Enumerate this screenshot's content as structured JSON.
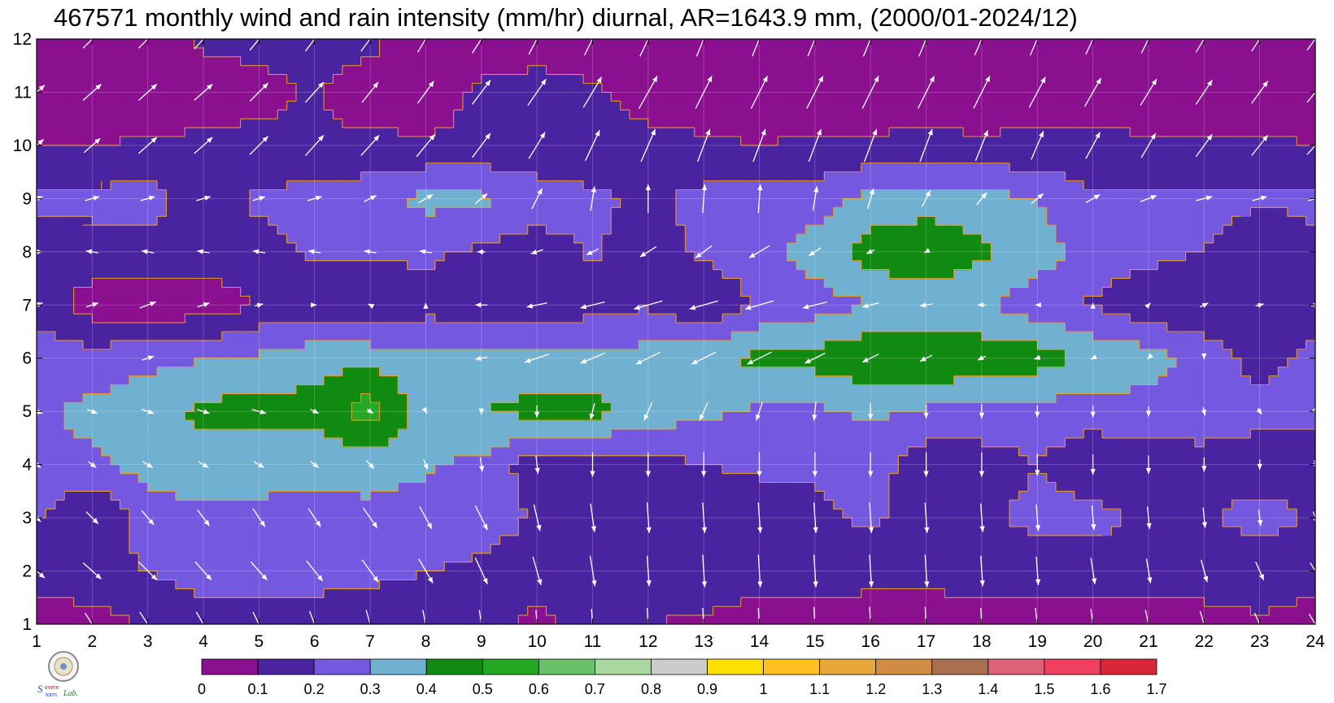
{
  "title": "467571 monthly wind and rain intensity (mm/hr) diurnal, AR=1643.9 mm, (2000/01-2024/12)",
  "chart_data": {
    "type": "heatmap",
    "title": "467571 monthly wind and rain intensity (mm/hr) diurnal, AR=1643.9 mm, (2000/01-2024/12)",
    "xlabel": "",
    "ylabel": "",
    "x": [
      1,
      2,
      3,
      4,
      5,
      6,
      7,
      8,
      9,
      10,
      11,
      12,
      13,
      14,
      15,
      16,
      17,
      18,
      19,
      20,
      21,
      22,
      23,
      24
    ],
    "y": [
      1,
      2,
      3,
      4,
      5,
      6,
      7,
      8,
      9,
      10,
      11,
      12
    ],
    "xlim": [
      1,
      24
    ],
    "ylim": [
      1,
      12
    ],
    "x_ticks": [
      "1",
      "2",
      "3",
      "4",
      "5",
      "6",
      "7",
      "8",
      "9",
      "10",
      "11",
      "12",
      "13",
      "14",
      "15",
      "16",
      "17",
      "18",
      "19",
      "20",
      "21",
      "22",
      "23",
      "24"
    ],
    "y_ticks": [
      "1",
      "2",
      "3",
      "4",
      "5",
      "6",
      "7",
      "8",
      "9",
      "10",
      "11",
      "12"
    ],
    "grid": true,
    "levels": [
      "0",
      "0.1",
      "0.2",
      "0.3",
      "0.4",
      "0.5",
      "0.6",
      "0.7",
      "0.8",
      "0.9",
      "1",
      "1.1",
      "1.2",
      "1.3",
      "1.4",
      "1.5",
      "1.6",
      "1.7"
    ],
    "level_values": [
      0,
      0.1,
      0.2,
      0.3,
      0.4,
      0.5,
      0.6,
      0.7,
      0.8,
      0.9,
      1,
      1.1,
      1.2,
      1.3,
      1.4,
      1.5,
      1.6,
      1.7
    ],
    "colors": [
      "#8a1090",
      "#4a24a0",
      "#7558e0",
      "#70b0d0",
      "#108a10",
      "#22a822",
      "#68c068",
      "#a8d8a0",
      "#cccccc",
      "#ffe000",
      "#ffc020",
      "#e8a838",
      "#d08c40",
      "#a87050",
      "#e06078",
      "#f04060",
      "#d82838"
    ],
    "z": [
      [
        0.05,
        0.05,
        0.12,
        0.15,
        0.15,
        0.15,
        0.15,
        0.15,
        0.15,
        0.07,
        0.15,
        0.1,
        0.09,
        0.06,
        0.06,
        0.04,
        0.04,
        0.05,
        0.06,
        0.06,
        0.06,
        0.07,
        0.09,
        0.06
      ],
      [
        0.14,
        0.18,
        0.2,
        0.25,
        0.25,
        0.24,
        0.22,
        0.2,
        0.18,
        0.16,
        0.15,
        0.14,
        0.14,
        0.14,
        0.14,
        0.14,
        0.14,
        0.14,
        0.14,
        0.14,
        0.14,
        0.14,
        0.14,
        0.14
      ],
      [
        0.21,
        0.09,
        0.25,
        0.28,
        0.28,
        0.28,
        0.28,
        0.27,
        0.24,
        0.19,
        0.16,
        0.15,
        0.14,
        0.14,
        0.18,
        0.22,
        0.14,
        0.18,
        0.23,
        0.24,
        0.16,
        0.19,
        0.24,
        0.19
      ],
      [
        0.28,
        0.28,
        0.34,
        0.35,
        0.33,
        0.32,
        0.33,
        0.31,
        0.28,
        0.14,
        0.14,
        0.17,
        0.2,
        0.22,
        0.21,
        0.25,
        0.14,
        0.14,
        0.2,
        0.12,
        0.15,
        0.18,
        0.14,
        0.17
      ],
      [
        0.28,
        0.33,
        0.35,
        0.43,
        0.44,
        0.44,
        0.56,
        0.35,
        0.4,
        0.43,
        0.43,
        0.36,
        0.32,
        0.28,
        0.28,
        0.32,
        0.28,
        0.28,
        0.26,
        0.25,
        0.26,
        0.23,
        0.24,
        0.22
      ],
      [
        0.26,
        0.24,
        0.28,
        0.29,
        0.32,
        0.36,
        0.37,
        0.33,
        0.33,
        0.35,
        0.33,
        0.34,
        0.38,
        0.43,
        0.44,
        0.48,
        0.5,
        0.47,
        0.45,
        0.38,
        0.35,
        0.26,
        0.16,
        0.24
      ],
      [
        0.16,
        0.05,
        0.03,
        0.04,
        0.11,
        0.14,
        0.09,
        0.16,
        0.14,
        0.14,
        0.16,
        0.19,
        0.1,
        0.21,
        0.25,
        0.3,
        0.31,
        0.31,
        0.24,
        0.19,
        0.12,
        0.11,
        0.13,
        0.12
      ],
      [
        0.15,
        0.16,
        0.16,
        0.15,
        0.16,
        0.22,
        0.22,
        0.22,
        0.18,
        0.15,
        0.21,
        0.15,
        0.22,
        0.27,
        0.35,
        0.45,
        0.52,
        0.42,
        0.35,
        0.25,
        0.23,
        0.2,
        0.14,
        0.18
      ],
      [
        0.22,
        0.23,
        0.24,
        0.15,
        0.22,
        0.24,
        0.26,
        0.33,
        0.32,
        0.26,
        0.22,
        0.18,
        0.23,
        0.24,
        0.24,
        0.34,
        0.32,
        0.34,
        0.3,
        0.21,
        0.22,
        0.23,
        0.21,
        0.22
      ],
      [
        0.1,
        0.1,
        0.11,
        0.12,
        0.12,
        0.1,
        0.12,
        0.11,
        0.12,
        0.12,
        0.12,
        0.12,
        0.11,
        0.1,
        0.11,
        0.11,
        0.12,
        0.11,
        0.12,
        0.12,
        0.11,
        0.11,
        0.11,
        0.1
      ],
      [
        0.05,
        0.05,
        0.05,
        0.05,
        0.08,
        0.11,
        0.06,
        0.05,
        0.12,
        0.14,
        0.11,
        0.07,
        0.06,
        0.06,
        0.06,
        0.06,
        0.06,
        0.06,
        0.06,
        0.06,
        0.06,
        0.06,
        0.06,
        0.06
      ],
      [
        0.05,
        0.05,
        0.05,
        0.12,
        0.12,
        0.12,
        0.12,
        0.05,
        0.05,
        0.05,
        0.05,
        0.05,
        0.05,
        0.05,
        0.05,
        0.05,
        0.05,
        0.05,
        0.05,
        0.05,
        0.05,
        0.05,
        0.05,
        0.05
      ]
    ],
    "wind_u": [
      [
        0.3,
        0.35,
        0.4,
        0.35,
        0.3,
        0.25,
        0.2,
        0.15,
        0.1,
        0.05,
        0.05,
        0.05,
        0.05,
        0.05,
        0.05,
        0.05,
        0.05,
        0.05,
        0.1,
        0.1,
        0.15,
        0.2,
        0.25,
        0.3
      ],
      [
        0.4,
        0.45,
        0.45,
        0.4,
        0.4,
        0.4,
        0.4,
        0.35,
        0.3,
        0.2,
        0.12,
        0.05,
        0.05,
        0.05,
        0.05,
        0.05,
        0.05,
        0.05,
        0.05,
        0.1,
        0.1,
        0.15,
        0.2,
        0.25
      ],
      [
        0.2,
        0.3,
        0.3,
        0.3,
        0.3,
        0.3,
        0.35,
        0.3,
        0.3,
        0.15,
        0.1,
        0.05,
        0.05,
        0.05,
        0.05,
        0.05,
        0.05,
        0.05,
        0.05,
        0.05,
        0.05,
        0.05,
        0.05,
        0.1
      ],
      [
        0.2,
        0.2,
        0.25,
        0.25,
        0.25,
        0.2,
        0.2,
        0.1,
        0.05,
        0.05,
        0.0,
        0.0,
        0.0,
        0.0,
        0.0,
        0.0,
        0.0,
        0.0,
        0.0,
        0.0,
        0.0,
        0.0,
        0.0,
        0.05
      ],
      [
        0.3,
        0.25,
        0.3,
        0.3,
        0.35,
        0.2,
        0.15,
        0.05,
        0.0,
        0.0,
        -0.1,
        -0.2,
        -0.2,
        -0.15,
        -0.05,
        0.0,
        0.0,
        0.0,
        0.0,
        0.0,
        0.0,
        0.05,
        0.1,
        0.1
      ],
      [
        0.0,
        0.0,
        0.3,
        0.0,
        0.0,
        0.0,
        0.0,
        0.0,
        -0.3,
        -0.6,
        -0.6,
        -0.6,
        -0.6,
        -0.6,
        -0.5,
        -0.4,
        -0.3,
        -0.2,
        -0.15,
        -0.1,
        -0.05,
        0.0,
        0.0,
        0.0
      ],
      [
        0.3,
        0.3,
        0.4,
        0.3,
        0.2,
        0.1,
        -0.1,
        0.0,
        -0.3,
        -0.5,
        -0.6,
        -0.7,
        -0.7,
        -0.7,
        -0.6,
        -0.4,
        -0.3,
        -0.2,
        -0.1,
        0.0,
        0.1,
        0.2,
        0.2,
        0.2
      ],
      [
        0.3,
        -0.3,
        -0.3,
        -0.3,
        -0.3,
        -0.3,
        -0.3,
        -0.3,
        -0.2,
        -0.3,
        -0.3,
        -0.4,
        -0.4,
        -0.5,
        -0.3,
        -0.2,
        -0.1,
        0.0,
        0.0,
        0.0,
        0.0,
        0.0,
        0.0,
        0.0
      ],
      [
        0.3,
        0.35,
        0.35,
        0.35,
        0.3,
        0.35,
        0.3,
        0.35,
        0.3,
        0.25,
        0.1,
        0.0,
        0.05,
        0.05,
        0.1,
        0.15,
        0.2,
        0.25,
        0.3,
        0.35,
        0.4,
        0.4,
        0.35,
        0.35
      ],
      [
        0.35,
        0.4,
        0.45,
        0.45,
        0.45,
        0.45,
        0.45,
        0.45,
        0.45,
        0.4,
        0.35,
        0.35,
        0.3,
        0.3,
        0.3,
        0.3,
        0.3,
        0.3,
        0.3,
        0.35,
        0.35,
        0.4,
        0.4,
        0.4
      ],
      [
        0.4,
        0.45,
        0.45,
        0.45,
        0.45,
        0.45,
        0.4,
        0.4,
        0.45,
        0.45,
        0.45,
        0.45,
        0.4,
        0.4,
        0.4,
        0.4,
        0.4,
        0.4,
        0.4,
        0.4,
        0.4,
        0.4,
        0.4,
        0.4
      ],
      [
        0.45,
        0.45,
        0.45,
        0.45,
        0.45,
        0.45,
        0.45,
        0.4,
        0.45,
        0.4,
        0.4,
        0.4,
        0.35,
        0.35,
        0.35,
        0.35,
        0.35,
        0.35,
        0.35,
        0.35,
        0.35,
        0.4,
        0.4,
        0.4
      ]
    ],
    "wind_v": [
      [
        -0.5,
        -0.55,
        -0.6,
        -0.6,
        -0.6,
        -0.65,
        -0.7,
        -0.7,
        -0.7,
        -0.7,
        -0.75,
        -0.8,
        -0.8,
        -0.8,
        -0.85,
        -0.85,
        -0.85,
        -0.8,
        -0.8,
        -0.75,
        -0.7,
        -0.65,
        -0.55,
        -0.5
      ],
      [
        -0.35,
        -0.4,
        -0.45,
        -0.45,
        -0.45,
        -0.5,
        -0.55,
        -0.6,
        -0.65,
        -0.7,
        -0.75,
        -0.75,
        -0.8,
        -0.8,
        -0.8,
        -0.8,
        -0.8,
        -0.75,
        -0.7,
        -0.65,
        -0.6,
        -0.55,
        -0.45,
        -0.4
      ],
      [
        -0.2,
        -0.3,
        -0.35,
        -0.4,
        -0.45,
        -0.45,
        -0.5,
        -0.55,
        -0.6,
        -0.65,
        -0.7,
        -0.75,
        -0.75,
        -0.75,
        -0.75,
        -0.75,
        -0.75,
        -0.7,
        -0.65,
        -0.6,
        -0.55,
        -0.5,
        -0.4,
        -0.3
      ],
      [
        -0.15,
        -0.15,
        -0.15,
        -0.15,
        -0.15,
        -0.15,
        -0.2,
        -0.25,
        -0.35,
        -0.45,
        -0.6,
        -0.6,
        -0.6,
        -0.6,
        -0.6,
        -0.6,
        -0.6,
        -0.6,
        -0.55,
        -0.5,
        -0.45,
        -0.35,
        -0.25,
        -0.2
      ],
      [
        -0.1,
        -0.1,
        -0.1,
        -0.1,
        -0.1,
        -0.1,
        -0.1,
        -0.1,
        -0.15,
        -0.3,
        -0.4,
        -0.45,
        -0.45,
        -0.45,
        -0.45,
        -0.4,
        -0.35,
        -0.35,
        -0.3,
        -0.3,
        -0.25,
        -0.2,
        -0.15,
        -0.1
      ],
      [
        0.0,
        0.0,
        0.1,
        0.0,
        0.0,
        0.0,
        0.0,
        0.0,
        -0.05,
        -0.2,
        -0.25,
        -0.3,
        -0.3,
        -0.3,
        -0.25,
        -0.2,
        -0.15,
        -0.1,
        -0.05,
        -0.05,
        -0.05,
        -0.05,
        0.0,
        0.0
      ],
      [
        0.1,
        0.1,
        0.15,
        0.1,
        0.05,
        0.0,
        0.05,
        0.1,
        0.0,
        -0.1,
        -0.15,
        -0.2,
        -0.2,
        -0.2,
        -0.15,
        -0.1,
        -0.05,
        0.0,
        0.0,
        0.1,
        0.1,
        0.1,
        0.05,
        0.05
      ],
      [
        0.0,
        0.05,
        0.05,
        0.05,
        0.05,
        0.05,
        0.05,
        0.05,
        0.0,
        -0.1,
        -0.15,
        -0.25,
        -0.3,
        -0.3,
        -0.2,
        -0.1,
        -0.05,
        0.0,
        0.0,
        0.0,
        0.0,
        0.0,
        0.0,
        0.0
      ],
      [
        0.1,
        0.1,
        0.1,
        0.1,
        0.1,
        0.1,
        0.15,
        0.2,
        0.25,
        0.5,
        0.6,
        0.7,
        0.7,
        0.7,
        0.6,
        0.5,
        0.4,
        0.3,
        0.25,
        0.2,
        0.15,
        0.1,
        0.1,
        0.1
      ],
      [
        0.3,
        0.35,
        0.4,
        0.4,
        0.45,
        0.5,
        0.5,
        0.55,
        0.6,
        0.65,
        0.75,
        0.8,
        0.8,
        0.8,
        0.8,
        0.8,
        0.8,
        0.75,
        0.7,
        0.65,
        0.6,
        0.55,
        0.5,
        0.45
      ],
      [
        0.35,
        0.4,
        0.4,
        0.4,
        0.45,
        0.5,
        0.5,
        0.55,
        0.6,
        0.65,
        0.75,
        0.8,
        0.8,
        0.8,
        0.8,
        0.8,
        0.8,
        0.8,
        0.75,
        0.7,
        0.65,
        0.6,
        0.55,
        0.5
      ],
      [
        0.45,
        0.45,
        0.45,
        0.5,
        0.55,
        0.6,
        0.6,
        0.65,
        0.7,
        0.75,
        0.8,
        0.85,
        0.85,
        0.85,
        0.85,
        0.85,
        0.85,
        0.8,
        0.8,
        0.75,
        0.7,
        0.65,
        0.6,
        0.55
      ]
    ],
    "wind_color": "#ffffff",
    "contour_line_color": "#f0a020"
  },
  "logo": {
    "text": "Severe Storm Lab."
  }
}
